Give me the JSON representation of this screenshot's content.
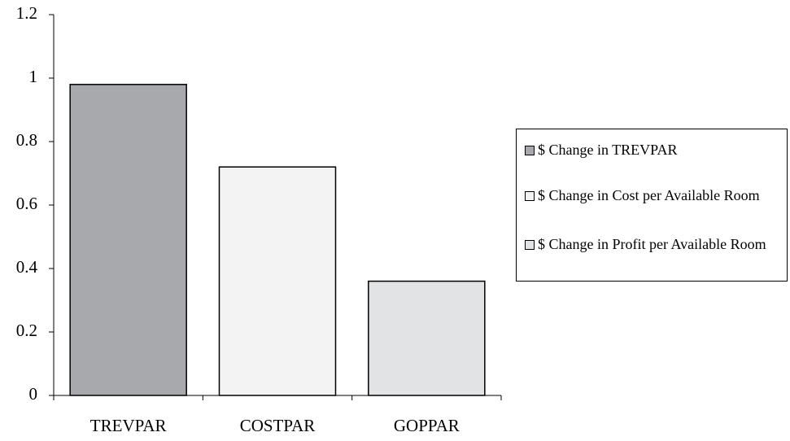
{
  "chart_data": {
    "type": "bar",
    "categories": [
      "TREVPAR",
      "COSTPAR",
      "GOPPAR"
    ],
    "series": [
      {
        "name": "$ Change in TREVPAR",
        "color": "#a7a9ac",
        "values": [
          0.98,
          null,
          null
        ]
      },
      {
        "name": "$ Change in Cost per Available Room",
        "color": "#f3f3f3",
        "values": [
          null,
          0.72,
          null
        ]
      },
      {
        "name": "$ Change in Profit per Available Room",
        "color": "#e2e3e5",
        "values": [
          null,
          null,
          0.36
        ]
      }
    ],
    "ylim": [
      0,
      1.2
    ],
    "yticks": [
      0,
      0.2,
      0.4,
      0.6,
      0.8,
      1,
      1.2
    ],
    "grid": false,
    "legend": "right"
  }
}
